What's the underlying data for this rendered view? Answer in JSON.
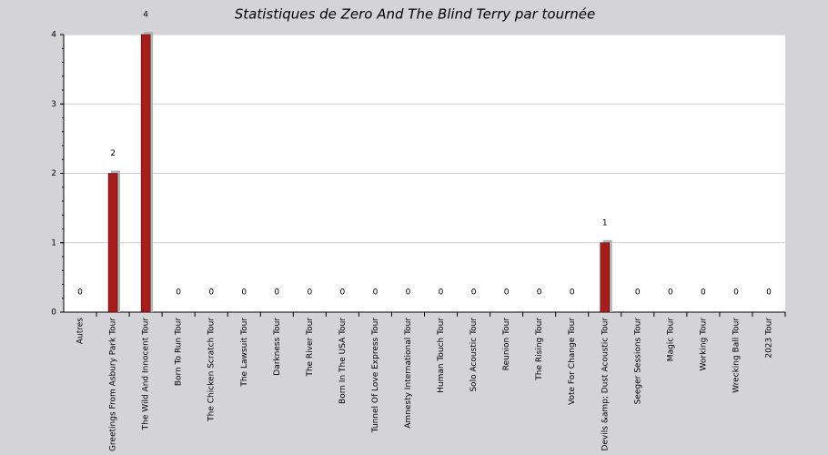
{
  "chart_data": {
    "type": "bar",
    "title": "Statistiques de Zero And The Blind Terry par tournée",
    "categories": [
      "Autres",
      "Greetings From Asbury Park Tour",
      "The Wild And Innocent Tour",
      "Born To Run Tour",
      "The Chicken Scratch Tour",
      "The Lawsuit Tour",
      "Darkness Tour",
      "The River Tour",
      "Born In The USA Tour",
      "Tunnel Of Love Express Tour",
      "Amnesty International Tour",
      "Human Touch Tour",
      "Solo Acoustic Tour",
      "Reunion Tour",
      "The Rising Tour",
      "Vote For Change Tour",
      "Devils &amp; Dust Acoustic Tour",
      "Seeger Sessions Tour",
      "Magic Tour",
      "Working Tour",
      "Wrecking Ball Tour",
      "2023 Tour"
    ],
    "values": [
      0,
      2,
      4,
      0,
      0,
      0,
      0,
      0,
      0,
      0,
      0,
      0,
      0,
      0,
      0,
      0,
      1,
      0,
      0,
      0,
      0,
      0
    ],
    "color": "#a81c1c",
    "ylim": [
      0,
      4
    ],
    "yticks": [
      0,
      1,
      2,
      3,
      4
    ],
    "grid": true
  }
}
